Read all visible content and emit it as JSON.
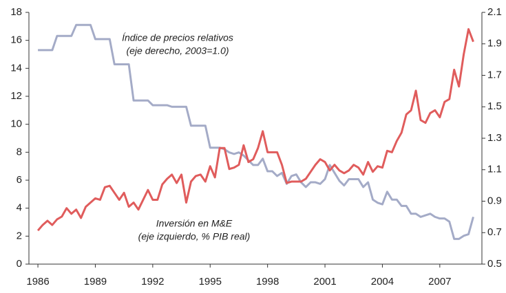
{
  "chart_data": {
    "type": "line",
    "annotations": [
      "Índice de precios relativos",
      "(eje derecho, 2003=1.0)",
      "Inversión en M&E",
      "(eje izquierdo, % PIB real)"
    ],
    "x": [
      1986,
      1986.25,
      1986.5,
      1986.75,
      1987,
      1987.25,
      1987.5,
      1987.75,
      1988,
      1988.25,
      1988.5,
      1988.75,
      1989,
      1989.25,
      1989.5,
      1989.75,
      1990,
      1990.25,
      1990.5,
      1990.75,
      1991,
      1991.25,
      1991.5,
      1991.75,
      1992,
      1992.25,
      1992.5,
      1992.75,
      1993,
      1993.25,
      1993.5,
      1993.75,
      1994,
      1994.25,
      1994.5,
      1994.75,
      1995,
      1995.25,
      1995.5,
      1995.75,
      1996,
      1996.25,
      1996.5,
      1996.75,
      1997,
      1997.25,
      1997.5,
      1997.75,
      1998,
      1998.25,
      1998.5,
      1998.75,
      1999,
      1999.25,
      1999.5,
      1999.75,
      2000,
      2000.25,
      2000.5,
      2000.75,
      2001,
      2001.25,
      2001.5,
      2001.75,
      2002,
      2002.25,
      2002.5,
      2002.75,
      2003,
      2003.25,
      2003.5,
      2003.75,
      2004,
      2004.25,
      2004.5,
      2004.75,
      2005,
      2005.25,
      2005.5,
      2005.75,
      2006,
      2006.25,
      2006.5,
      2006.75,
      2007,
      2007.25,
      2007.5,
      2007.75,
      2008,
      2008.25,
      2008.5,
      2008.75
    ],
    "series": [
      {
        "name": "Inversión en M&E",
        "color": "#e05c5c",
        "values": [
          2.4,
          2.8,
          3.1,
          2.8,
          3.2,
          3.4,
          4.0,
          3.6,
          3.9,
          3.3,
          4.1,
          4.4,
          4.7,
          4.6,
          5.5,
          5.6,
          5.1,
          4.6,
          5.1,
          4.1,
          4.4,
          3.9,
          4.6,
          5.3,
          4.6,
          4.6,
          5.7,
          6.1,
          6.4,
          5.8,
          6.4,
          4.4,
          5.9,
          6.3,
          6.4,
          5.9,
          7.0,
          6.2,
          8.3,
          8.3,
          6.8,
          6.9,
          7.1,
          8.5,
          7.3,
          7.5,
          8.3,
          9.5,
          8.0,
          8.0,
          8.0,
          7.1,
          5.8,
          5.9,
          5.9,
          5.9,
          6.1,
          6.6,
          7.1,
          7.5,
          7.3,
          6.7,
          7.1,
          6.7,
          6.5,
          6.7,
          7.1,
          6.9,
          6.4,
          7.3,
          6.6,
          7.0,
          6.9,
          8.1,
          8.0,
          8.8,
          9.4,
          10.7,
          11.0,
          12.4,
          10.3,
          10.1,
          10.8,
          11.0,
          10.5,
          11.6,
          11.8,
          13.9,
          12.7,
          15.0,
          16.8,
          15.9
        ]
      },
      {
        "name": "Índice de precios relativos",
        "color": "#a4abc7",
        "axis": "y2",
        "values": [
          1.86,
          1.86,
          1.86,
          1.86,
          1.95,
          1.95,
          1.95,
          1.95,
          2.02,
          2.02,
          2.02,
          2.02,
          1.93,
          1.93,
          1.93,
          1.93,
          1.77,
          1.77,
          1.77,
          1.77,
          1.54,
          1.54,
          1.54,
          1.54,
          1.51,
          1.51,
          1.51,
          1.51,
          1.5,
          1.5,
          1.5,
          1.5,
          1.38,
          1.38,
          1.38,
          1.38,
          1.24,
          1.24,
          1.24,
          1.23,
          1.21,
          1.2,
          1.21,
          1.19,
          1.16,
          1.13,
          1.13,
          1.17,
          1.09,
          1.09,
          1.06,
          1.08,
          1.01,
          1.06,
          1.07,
          1.02,
          0.99,
          1.02,
          1.02,
          1.01,
          1.04,
          1.13,
          1.08,
          1.03,
          1.0,
          1.04,
          1.04,
          1.04,
          0.99,
          1.02,
          0.91,
          0.89,
          0.88,
          0.96,
          0.91,
          0.91,
          0.87,
          0.87,
          0.82,
          0.82,
          0.8,
          0.81,
          0.82,
          0.8,
          0.79,
          0.79,
          0.77,
          0.66,
          0.66,
          0.68,
          0.69,
          0.8
        ]
      }
    ],
    "xlim": [
      1985.53,
      2009.2
    ],
    "xticks": [
      1986,
      1989,
      1992,
      1995,
      1998,
      2001,
      2004,
      2007
    ],
    "ylim": [
      0,
      18
    ],
    "yticks": [
      0,
      2,
      4,
      6,
      8,
      10,
      12,
      14,
      16,
      18
    ],
    "y2lim": [
      0.5,
      2.1
    ],
    "y2ticks": [
      0.5,
      0.7,
      0.9,
      1.1,
      1.3,
      1.5,
      1.7,
      1.9,
      2.1
    ]
  }
}
